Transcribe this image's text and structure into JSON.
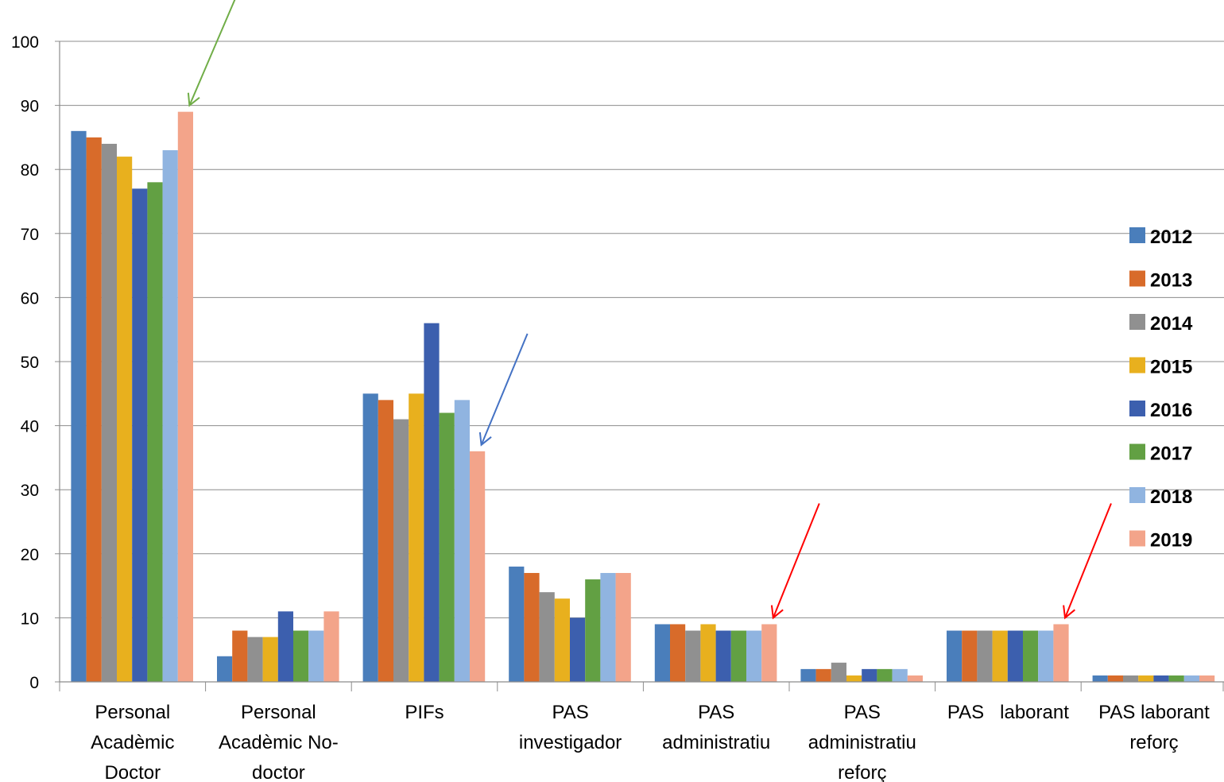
{
  "chart_data": {
    "type": "bar",
    "title": "",
    "xlabel": "",
    "ylabel": "",
    "ylim": [
      0,
      100
    ],
    "yticks": [
      0,
      10,
      20,
      30,
      40,
      50,
      60,
      70,
      80,
      90,
      100
    ],
    "grid": true,
    "legend_position": "right",
    "categories": [
      [
        "Personal",
        "Acadèmic",
        "Doctor"
      ],
      [
        "Personal",
        "Acadèmic No-",
        "doctor"
      ],
      [
        "PIFs"
      ],
      [
        "PAS",
        "investigador"
      ],
      [
        "PAS",
        "administratiu"
      ],
      [
        "PAS",
        "administratiu",
        "reforç"
      ],
      [
        "PAS   laborant"
      ],
      [
        "PAS laborant",
        "reforç"
      ]
    ],
    "series": [
      {
        "name": "2012",
        "color": "#4a7ebb",
        "values": [
          86,
          4,
          45,
          18,
          9,
          2,
          8,
          1
        ]
      },
      {
        "name": "2013",
        "color": "#d86b2a",
        "values": [
          85,
          8,
          44,
          17,
          9,
          2,
          8,
          1
        ]
      },
      {
        "name": "2014",
        "color": "#909090",
        "values": [
          84,
          7,
          41,
          14,
          8,
          3,
          8,
          1
        ]
      },
      {
        "name": "2015",
        "color": "#e8b01e",
        "values": [
          82,
          7,
          45,
          13,
          9,
          1,
          8,
          1
        ]
      },
      {
        "name": "2016",
        "color": "#3c5fae",
        "values": [
          77,
          11,
          56,
          10,
          8,
          2,
          8,
          1
        ]
      },
      {
        "name": "2017",
        "color": "#62a043",
        "values": [
          78,
          8,
          42,
          16,
          8,
          2,
          8,
          1
        ]
      },
      {
        "name": "2018",
        "color": "#90b4e0",
        "values": [
          83,
          8,
          44,
          17,
          8,
          2,
          8,
          1
        ]
      },
      {
        "name": "2019",
        "color": "#f3a48a",
        "values": [
          89,
          11,
          36,
          17,
          9,
          1,
          9,
          1
        ]
      }
    ],
    "annotations": [
      {
        "type": "arrow",
        "color": "#70ad47",
        "category": 0,
        "series": "2019"
      },
      {
        "type": "arrow",
        "color": "#4472c4",
        "category": 2,
        "series": "2019"
      },
      {
        "type": "arrow",
        "color": "#ff0000",
        "category": 4,
        "series": "2019"
      },
      {
        "type": "arrow",
        "color": "#ff0000",
        "category": 6,
        "series": "2019"
      }
    ]
  }
}
